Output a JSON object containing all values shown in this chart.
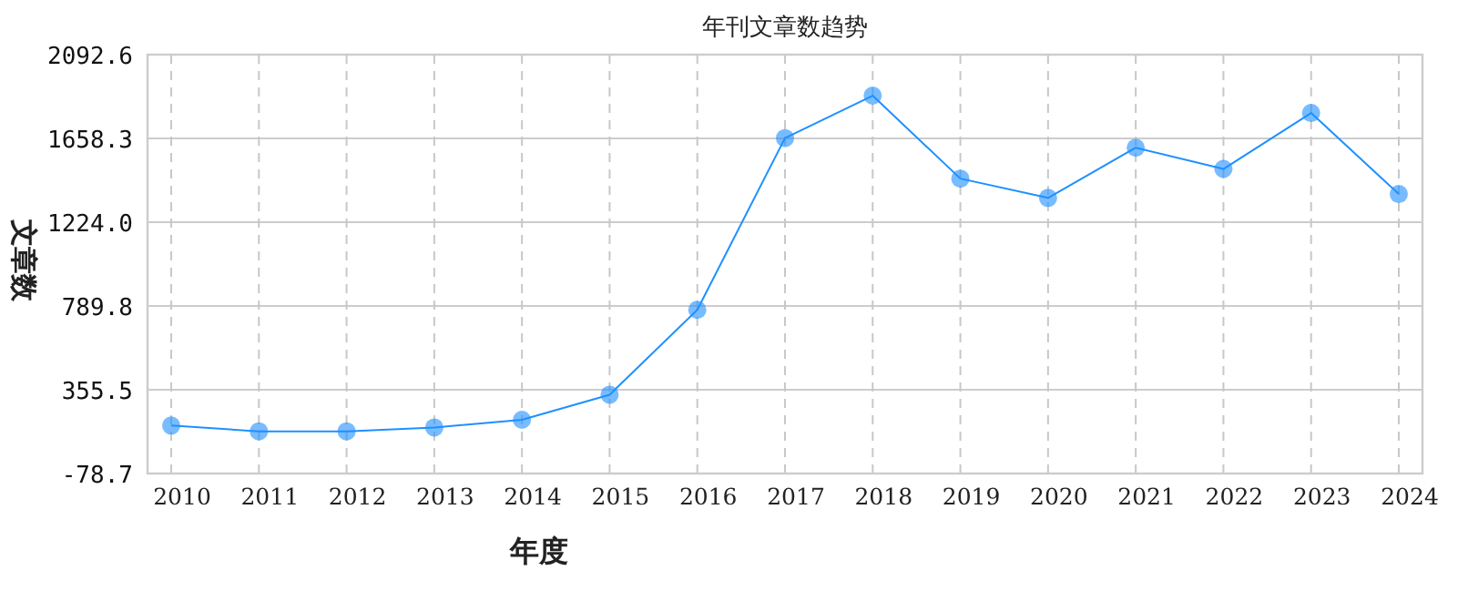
{
  "chart_data": {
    "type": "line",
    "title": "年刊文章数趋势",
    "xlabel": "年度",
    "ylabel": "文章数",
    "categories": [
      "2010",
      "2011",
      "2012",
      "2013",
      "2014",
      "2015",
      "2016",
      "2017",
      "2018",
      "2019",
      "2020",
      "2021",
      "2022",
      "2023",
      "2024"
    ],
    "series": [
      {
        "color": "#1e90ff",
        "values": [
          170,
          140,
          140,
          160,
          200,
          330,
          770,
          1660,
          1880,
          1450,
          1350,
          1610,
          1500,
          1790,
          1370
        ]
      }
    ],
    "ylim": [
      -78.7,
      2092.6
    ],
    "yticks": [
      {
        "value": -78.7,
        "label": "-78.7"
      },
      {
        "value": 355.5,
        "label": "355.5"
      },
      {
        "value": 789.8,
        "label": "789.8"
      },
      {
        "value": 1224.0,
        "label": "1224.0"
      },
      {
        "value": 1658.3,
        "label": "1658.3"
      },
      {
        "value": 2092.6,
        "label": "2092.6"
      }
    ],
    "grid": true,
    "marker": "circle",
    "line_style": "solid"
  }
}
